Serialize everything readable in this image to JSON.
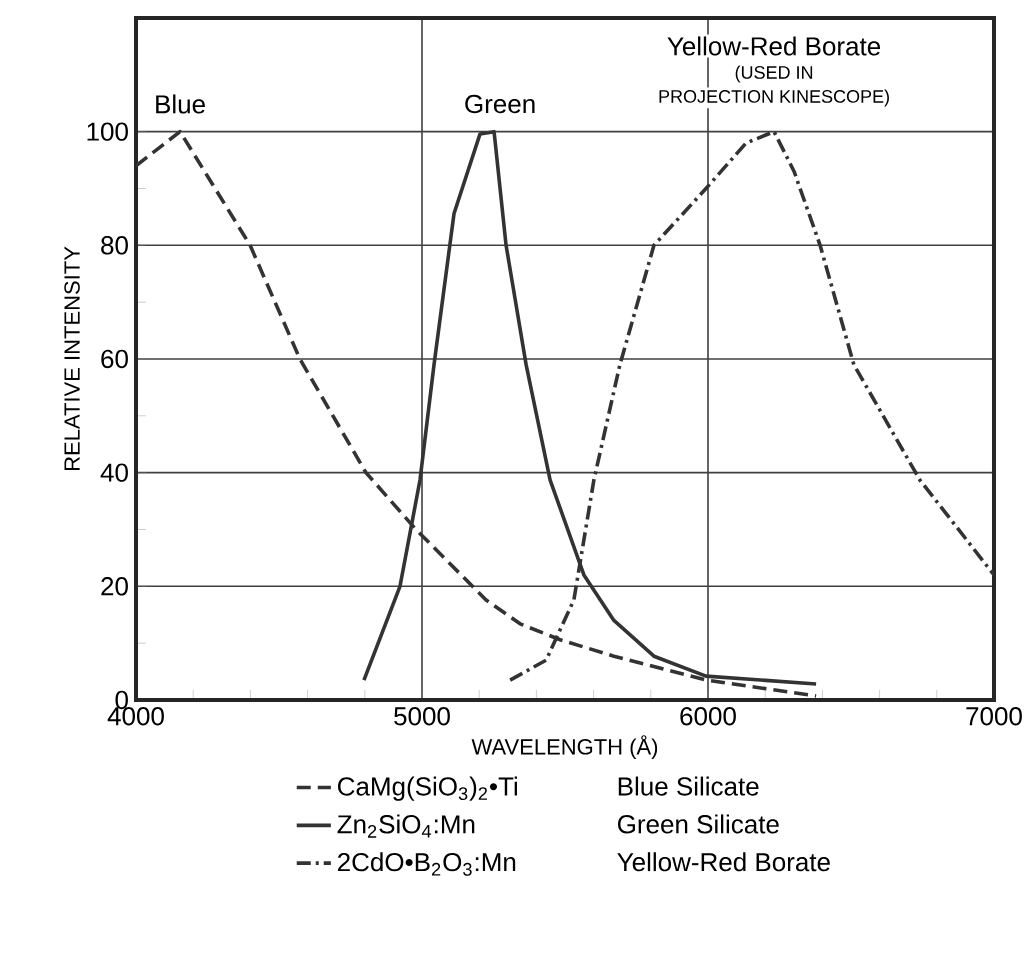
{
  "chart_data": {
    "type": "line",
    "xlabel": "WAVELENGTH (Å)",
    "ylabel": "RELATIVE INTENSITY",
    "xlim": [
      4000,
      7000
    ],
    "ylim": [
      0,
      120
    ],
    "xticks": [
      4000,
      5000,
      6000,
      7000
    ],
    "yticks": [
      0,
      20,
      40,
      60,
      80,
      100
    ],
    "grid": true,
    "legend": "bottom",
    "series": [
      {
        "name": "CaMg(SiO$_{3}$)$_{2}$•Ti",
        "color": "#333333",
        "line_style": "dashed",
        "x": [
          4000,
          4154,
          4399,
          4573,
          4804,
          4979,
          5224,
          5343,
          5483,
          5671,
          5993,
          6378
        ],
        "values": [
          94,
          100,
          80,
          60,
          40,
          30,
          17.6,
          13.4,
          10.6,
          7.7,
          3.5,
          0.7
        ]
      },
      {
        "name": "Zn$_{2}$SiO$_{4}$:Mn",
        "color": "#333333",
        "line_style": "solid",
        "x": [
          4797,
          4923,
          4993,
          5042,
          5112,
          5203,
          5252,
          5294,
          5364,
          5448,
          5566,
          5671,
          5811,
          5993,
          6378
        ],
        "values": [
          3.5,
          20,
          38.7,
          59,
          85.6,
          99.6,
          100,
          80,
          59,
          38.7,
          22,
          14,
          7.7,
          4.2,
          2.8
        ]
      },
      {
        "name": "2CdO•B$_{2}$O$_{3}$:Mn",
        "color": "#333333",
        "line_style": "dashdot",
        "x": [
          5308,
          5434,
          5531,
          5601,
          5692,
          5811,
          5993,
          6133,
          6231,
          6301,
          6392,
          6510,
          6741,
          7000
        ],
        "values": [
          3.5,
          7,
          17.6,
          38.7,
          59,
          80,
          90,
          98,
          100,
          93,
          80,
          59,
          38.7,
          22
        ]
      }
    ],
    "annotations": [
      "Blue",
      "Green",
      "Yellow-Red Borate",
      "(USED IN",
      "PROJECTION KINESCOPE)",
      "Blue Silicate",
      "Green Silicate",
      "Yellow-Red Borate"
    ]
  }
}
